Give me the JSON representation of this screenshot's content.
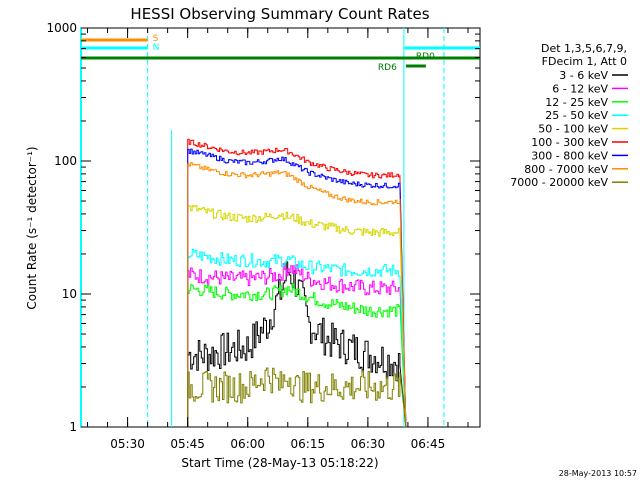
{
  "chart_data": {
    "type": "line",
    "title": "HESSI Observing Summary Count Rates",
    "xlabel": "Start Time (28-May-13 05:18:22)",
    "ylabel": "Count Rate (s⁻¹ detector⁻¹)",
    "y_scale": "log",
    "ylim": [
      1,
      1000
    ],
    "xlim": [
      "05:18:22",
      "06:58:00"
    ],
    "y_ticks": [
      {
        "value": 1,
        "label": "1"
      },
      {
        "value": 10,
        "label": "10"
      },
      {
        "value": 100,
        "label": "100"
      },
      {
        "value": 1000,
        "label": "1000"
      }
    ],
    "x_ticks": [
      "05:30",
      "05:45",
      "06:00",
      "06:15",
      "06:30",
      "06:45"
    ],
    "legend_header": [
      "Det 1,3,5,6,7,9,",
      "FDecim 1, Att 0"
    ],
    "legend_placement": "right",
    "series": [
      {
        "name": "3 - 6 keV",
        "color": "#000000",
        "x": [
          "05:45",
          "05:50",
          "05:55",
          "06:00",
          "06:05",
          "06:08",
          "06:10",
          "06:12",
          "06:15",
          "06:20",
          "06:25",
          "06:30",
          "06:35",
          "06:38"
        ],
        "values": [
          3.5,
          3.5,
          3.8,
          4.0,
          6.0,
          10,
          15,
          12,
          6,
          4.5,
          4.0,
          3.5,
          3.2,
          3.0
        ]
      },
      {
        "name": "6 - 12 keV",
        "color": "#ff00ff",
        "x": [
          "05:45",
          "05:50",
          "05:55",
          "06:00",
          "06:05",
          "06:08",
          "06:10",
          "06:12",
          "06:15",
          "06:20",
          "06:25",
          "06:30",
          "06:35",
          "06:38"
        ],
        "values": [
          14,
          13.5,
          13,
          13,
          13.5,
          14,
          16,
          15,
          13,
          12,
          11.5,
          11,
          11,
          11
        ]
      },
      {
        "name": "12 - 25 keV",
        "color": "#00ff00",
        "x": [
          "05:45",
          "05:50",
          "05:55",
          "06:00",
          "06:05",
          "06:08",
          "06:10",
          "06:12",
          "06:15",
          "06:20",
          "06:25",
          "06:30",
          "06:35",
          "06:38"
        ],
        "values": [
          11,
          10.5,
          10,
          10,
          10,
          10.5,
          11,
          10.5,
          9.5,
          8.5,
          8.0,
          7.5,
          7.5,
          7.5
        ]
      },
      {
        "name": "25 - 50 keV",
        "color": "#00ffff",
        "x": [
          "05:45",
          "05:50",
          "05:55",
          "06:00",
          "06:05",
          "06:08",
          "06:10",
          "06:12",
          "06:15",
          "06:20",
          "06:25",
          "06:30",
          "06:35",
          "06:38"
        ],
        "values": [
          20,
          19,
          18,
          18,
          17.5,
          18,
          18,
          17,
          16,
          15.5,
          15,
          15,
          15,
          15
        ]
      },
      {
        "name": "50 - 100 keV",
        "color": "#d6d600",
        "x": [
          "05:45",
          "05:50",
          "05:55",
          "06:00",
          "06:05",
          "06:08",
          "06:10",
          "06:12",
          "06:15",
          "06:20",
          "06:25",
          "06:30",
          "06:35",
          "06:38"
        ],
        "values": [
          45,
          41,
          38,
          37,
          38,
          40,
          38,
          37,
          34,
          32,
          30,
          29,
          29,
          29
        ]
      },
      {
        "name": "100 - 300 keV",
        "color": "#ff0000",
        "x": [
          "05:45",
          "05:50",
          "05:55",
          "06:00",
          "06:05",
          "06:08",
          "06:10",
          "06:12",
          "06:15",
          "06:20",
          "06:25",
          "06:30",
          "06:35",
          "06:38"
        ],
        "values": [
          140,
          128,
          118,
          115,
          118,
          122,
          118,
          110,
          98,
          88,
          82,
          78,
          78,
          80
        ]
      },
      {
        "name": "300 - 800 keV",
        "color": "#0000ff",
        "x": [
          "05:45",
          "05:50",
          "05:55",
          "06:00",
          "06:05",
          "06:08",
          "06:10",
          "06:12",
          "06:15",
          "06:20",
          "06:25",
          "06:30",
          "06:35",
          "06:38"
        ],
        "values": [
          120,
          110,
          100,
          97,
          100,
          105,
          100,
          92,
          82,
          74,
          68,
          66,
          65,
          66
        ]
      },
      {
        "name": "800 - 7000 keV",
        "color": "#ff8c00",
        "x": [
          "05:45",
          "05:50",
          "05:55",
          "06:00",
          "06:05",
          "06:08",
          "06:10",
          "06:12",
          "06:15",
          "06:20",
          "06:25",
          "06:30",
          "06:35",
          "06:38"
        ],
        "values": [
          95,
          86,
          80,
          78,
          80,
          82,
          79,
          73,
          64,
          56,
          51,
          49,
          49,
          50
        ]
      },
      {
        "name": "7000 - 20000 keV",
        "color": "#808000",
        "x": [
          "05:45",
          "05:50",
          "05:55",
          "06:00",
          "06:05",
          "06:08",
          "06:10",
          "06:12",
          "06:15",
          "06:20",
          "06:25",
          "06:30",
          "06:35",
          "06:38"
        ],
        "values": [
          2.0,
          2.0,
          2.0,
          2.0,
          2.5,
          2.0,
          2.5,
          2.0,
          2.0,
          2.0,
          2.0,
          2.0,
          2.0,
          2.0
        ]
      }
    ],
    "annotations": [
      {
        "label": "S",
        "color": "#ff8c00"
      },
      {
        "label": "N",
        "color": "#00ffff"
      },
      {
        "label": "RD0",
        "color": "#008000"
      },
      {
        "label": "RD6",
        "color": "#008000"
      }
    ]
  },
  "footer_timestamp": "28-May-2013 10:57"
}
